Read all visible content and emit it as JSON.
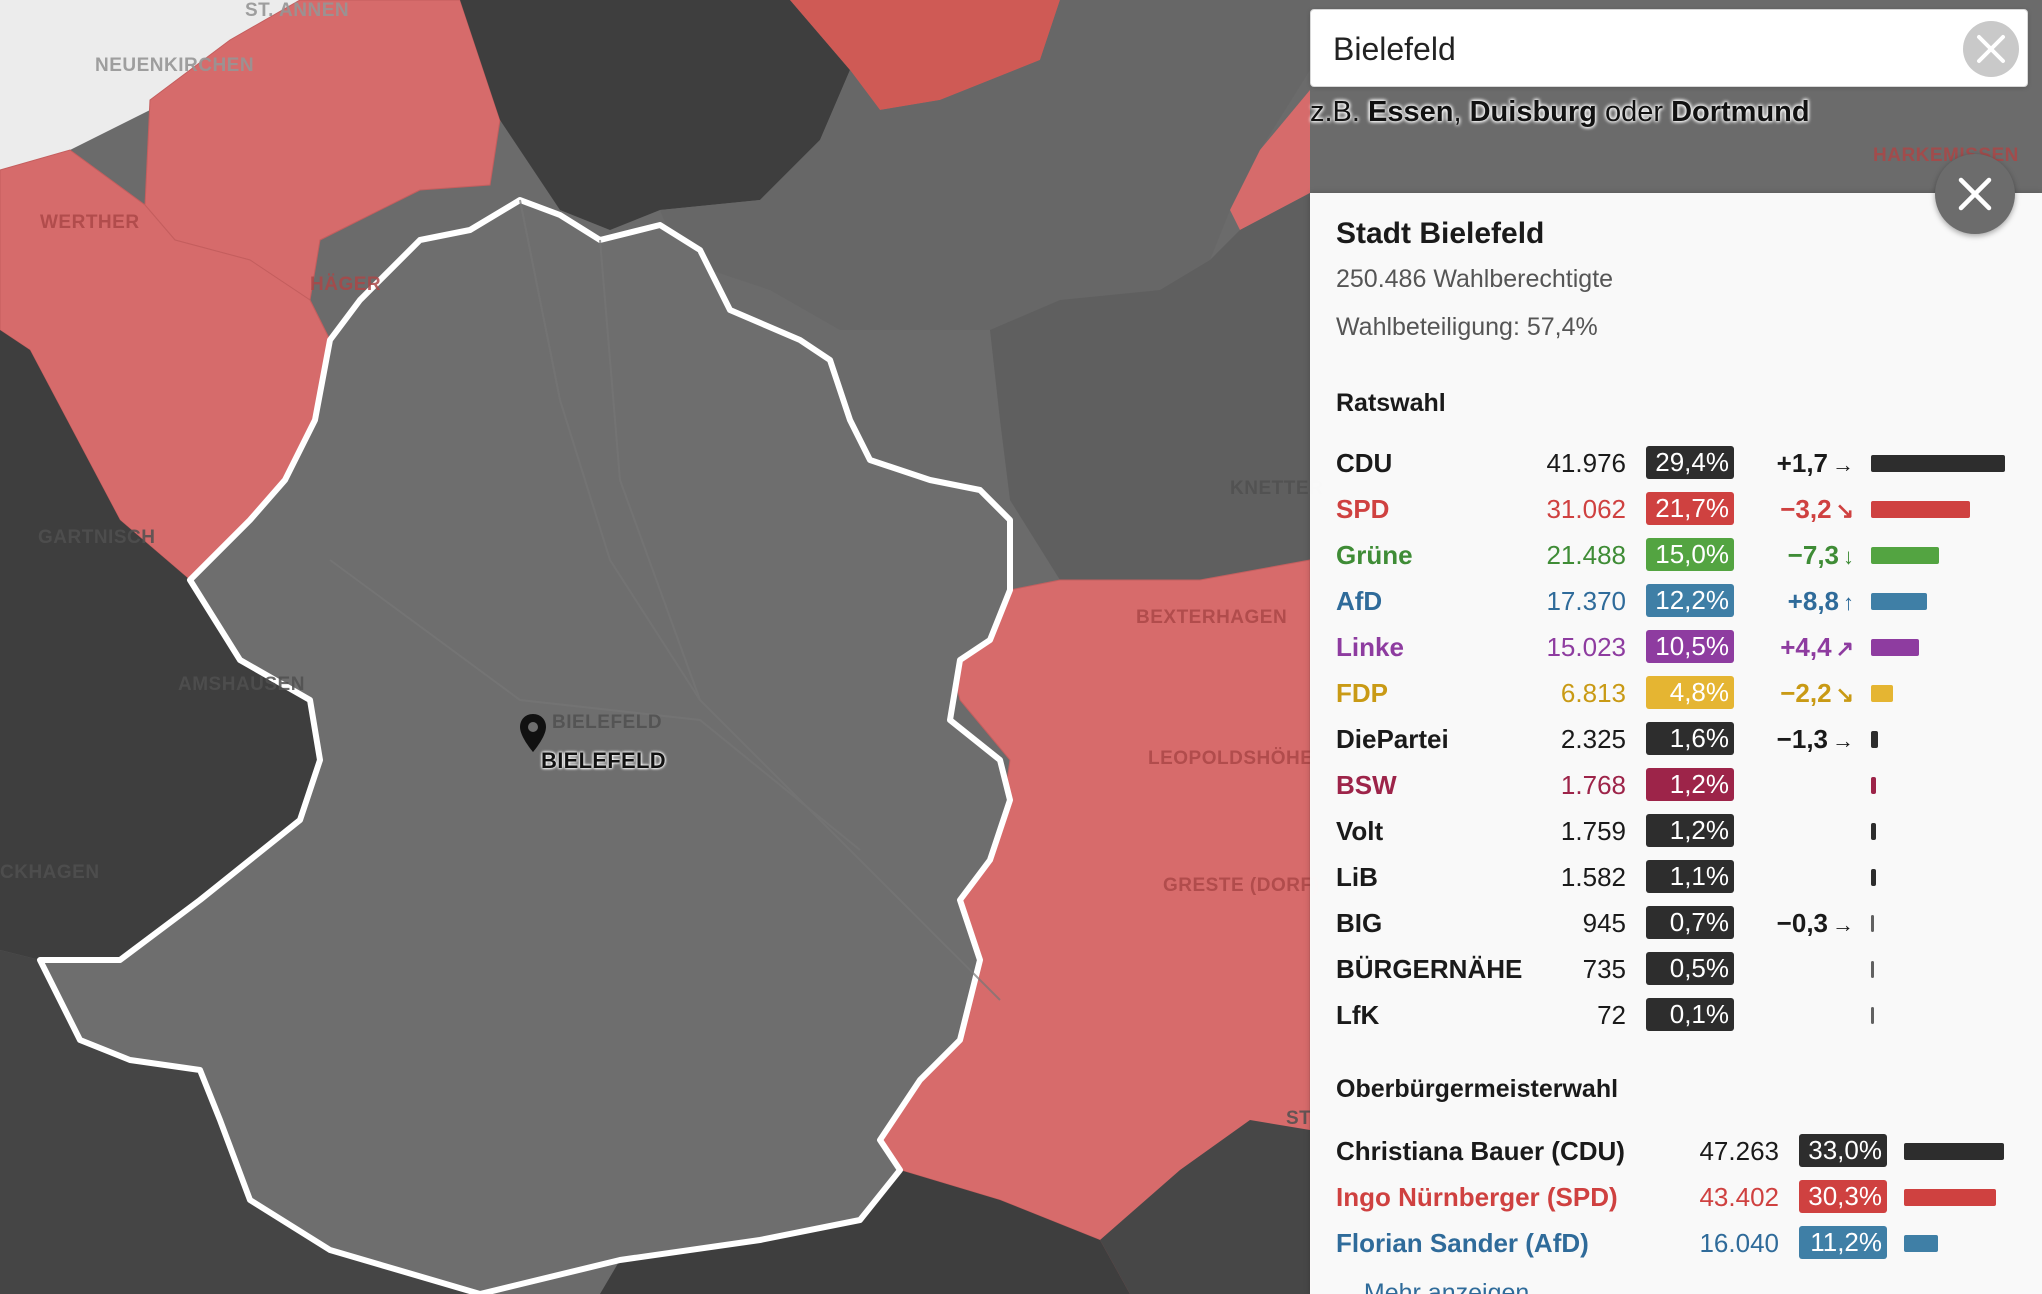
{
  "map": {
    "labels": [
      {
        "id": "neuenkirchen",
        "text": "NEUENKIRCHEN"
      },
      {
        "id": "steinhagen-ann",
        "text": "ST. ANNEN"
      },
      {
        "id": "werther",
        "text": "WERTHER"
      },
      {
        "id": "haeger",
        "text": "HÄGER"
      },
      {
        "id": "gartnisch",
        "text": "GARTNISCH"
      },
      {
        "id": "amshausen",
        "text": "AMSHAUSEN"
      },
      {
        "id": "ckhagen",
        "text": "CKHAGEN"
      },
      {
        "id": "bielefeld-gray",
        "text": "BIELEFELD"
      },
      {
        "id": "knetterheide",
        "text": "KNETTER"
      },
      {
        "id": "bexterhagen",
        "text": "BEXTERHAGEN"
      },
      {
        "id": "leopoldshoehe",
        "text": "LEOPOLDSHÖHE"
      },
      {
        "id": "greste",
        "text": "GRESTE (DORF)"
      },
      {
        "id": "harkemissen",
        "text": "HARKEMISSEN"
      },
      {
        "id": "st",
        "text": "ST"
      }
    ],
    "marker_label": "BIELEFELD",
    "colors": {
      "cdu_dark": "#3e3e3e",
      "gray": "#6b6b6b",
      "spd_red": "#d66b6b",
      "spd_deep": "#cf5a55",
      "light": "#ececec"
    }
  },
  "search": {
    "value": "Bielefeld",
    "clear_icon": "close-icon"
  },
  "hint": {
    "prefix": "z.B.",
    "city1": "Essen",
    "sep": ",",
    "city2": "Duisburg",
    "conj": "oder",
    "city3": "Dortmund"
  },
  "panel": {
    "title": "Stadt Bielefeld",
    "eligible": "250.486 Wahlberechtigte",
    "turnout": "Wahlbeteiligung: 57,4%",
    "council_heading": "Ratswahl",
    "council": [
      {
        "party": "CDU",
        "votes": "41.976",
        "pct": "29,4%",
        "change": "+1,7",
        "arrow": "→",
        "color": "#2d2d2d",
        "text_color": "#1a1a1a",
        "share": 29.4
      },
      {
        "party": "SPD",
        "votes": "31.062",
        "pct": "21,7%",
        "change": "−3,2",
        "arrow": "↘",
        "color": "#cf4140",
        "text_color": "#cf4140",
        "share": 21.7
      },
      {
        "party": "Grüne",
        "votes": "21.488",
        "pct": "15,0%",
        "change": "−7,3",
        "arrow": "↓",
        "color": "#53a441",
        "text_color": "#3f8c36",
        "share": 15.0
      },
      {
        "party": "AfD",
        "votes": "17.370",
        "pct": "12,2%",
        "change": "+8,8",
        "arrow": "↑",
        "color": "#3f7fa6",
        "text_color": "#2f6b9a",
        "share": 12.2
      },
      {
        "party": "Linke",
        "votes": "15.023",
        "pct": "10,5%",
        "change": "+4,4",
        "arrow": "↗",
        "color": "#8e3ca0",
        "text_color": "#8e3ca0",
        "share": 10.5
      },
      {
        "party": "FDP",
        "votes": "6.813",
        "pct": "4,8%",
        "change": "−2,2",
        "arrow": "↘",
        "color": "#e5b532",
        "text_color": "#c99a15",
        "share": 4.8
      },
      {
        "party": "DiePartei",
        "votes": "2.325",
        "pct": "1,6%",
        "change": "−1,3",
        "arrow": "→",
        "color": "#2d2d2d",
        "text_color": "#1a1a1a",
        "share": 1.6
      },
      {
        "party": "BSW",
        "votes": "1.768",
        "pct": "1,2%",
        "change": "",
        "arrow": "",
        "color": "#9d2449",
        "text_color": "#9d2449",
        "share": 1.2
      },
      {
        "party": "Volt",
        "votes": "1.759",
        "pct": "1,2%",
        "change": "",
        "arrow": "",
        "color": "#2d2d2d",
        "text_color": "#1a1a1a",
        "share": 1.2
      },
      {
        "party": "LiB",
        "votes": "1.582",
        "pct": "1,1%",
        "change": "",
        "arrow": "",
        "color": "#2d2d2d",
        "text_color": "#1a1a1a",
        "share": 1.1
      },
      {
        "party": "BIG",
        "votes": "945",
        "pct": "0,7%",
        "change": "−0,3",
        "arrow": "→",
        "color": "#2d2d2d",
        "text_color": "#1a1a1a",
        "share": 0.7
      },
      {
        "party": "BÜRGERNÄHE",
        "votes": "735",
        "pct": "0,5%",
        "change": "",
        "arrow": "",
        "color": "#2d2d2d",
        "text_color": "#1a1a1a",
        "share": 0.5
      },
      {
        "party": "LfK",
        "votes": "72",
        "pct": "0,1%",
        "change": "",
        "arrow": "",
        "color": "#2d2d2d",
        "text_color": "#1a1a1a",
        "share": 0.1
      }
    ],
    "mayor_heading": "Oberbürgermeisterwahl",
    "mayor": [
      {
        "name": "Christiana Bauer (CDU)",
        "votes": "47.263",
        "pct": "33,0%",
        "color": "#2d2d2d",
        "text_color": "#1a1a1a",
        "share": 33.0
      },
      {
        "name": "Ingo Nürnberger (SPD)",
        "votes": "43.402",
        "pct": "30,3%",
        "color": "#cf4140",
        "text_color": "#cf4140",
        "share": 30.3
      },
      {
        "name": "Florian Sander (AfD)",
        "votes": "16.040",
        "pct": "11,2%",
        "color": "#3f7fa6",
        "text_color": "#2f6b9a",
        "share": 11.2
      }
    ],
    "more": "⌄ Mehr anzeigen",
    "close_icon": "close-icon"
  }
}
